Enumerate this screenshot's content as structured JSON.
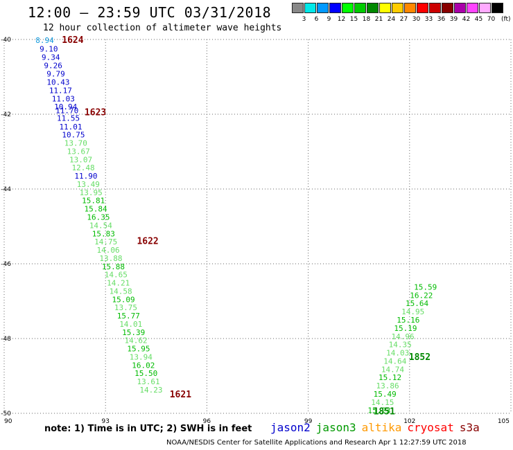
{
  "title": "12:00 — 23:59 UTC 03/31/2018",
  "subtitle": "12 hour collection of altimeter wave heights",
  "color_scale": {
    "unit": "(ft)",
    "bins": [
      {
        "label": "3",
        "color": "#888888"
      },
      {
        "label": "6",
        "color": "#00e8e8"
      },
      {
        "label": "9",
        "color": "#0099ff"
      },
      {
        "label": "12",
        "color": "#0000ff"
      },
      {
        "label": "15",
        "color": "#00ff00"
      },
      {
        "label": "18",
        "color": "#00cc00"
      },
      {
        "label": "21",
        "color": "#008800"
      },
      {
        "label": "24",
        "color": "#ffff00"
      },
      {
        "label": "27",
        "color": "#ffcc00"
      },
      {
        "label": "30",
        "color": "#ff8800"
      },
      {
        "label": "33",
        "color": "#ff0000"
      },
      {
        "label": "36",
        "color": "#cc0000"
      },
      {
        "label": "39",
        "color": "#880000"
      },
      {
        "label": "42",
        "color": "#aa00aa"
      },
      {
        "label": "45",
        "color": "#ff44ff"
      },
      {
        "label": "70",
        "color": "#ffaaff"
      },
      {
        "label": "",
        "color": "#000000"
      }
    ]
  },
  "note": "note:  1) Time is in UTC;  2) SWH is in feet",
  "legend": [
    {
      "name": "jason2",
      "color": "#0000cc"
    },
    {
      "name": "jason3",
      "color": "#009900"
    },
    {
      "name": "altika",
      "color": "#ff9900"
    },
    {
      "name": "cryosat",
      "color": "#ff0000"
    },
    {
      "name": "s3a",
      "color": "#880000"
    }
  ],
  "credit": "NOAA/NESDIS Center for Satellite Applications and Research     Apr  1 12:27:59 UTC 2018",
  "chart_data": {
    "type": "scatter",
    "xlim": [
      90,
      105
    ],
    "ylim": [
      -50,
      -40
    ],
    "x_ticks": [
      "90",
      "93",
      "96",
      "99",
      "102",
      "105"
    ],
    "y_ticks": [
      "-40",
      "-42",
      "-44",
      "-46",
      "-48",
      "-50"
    ],
    "grid": true,
    "colors": {
      "light": "#66dd66",
      "mid": "#00bb00",
      "dark": "#008800",
      "blue": "#0000cc",
      "cyan": "#1199dd",
      "time": "#880000"
    },
    "points": [
      {
        "x": 91.2,
        "y": -40.02,
        "v": "8.94",
        "c": "cyan"
      },
      {
        "x": 91.32,
        "y": -40.25,
        "v": "9.10",
        "c": "blue"
      },
      {
        "x": 91.38,
        "y": -40.47,
        "v": "9.34",
        "c": "blue"
      },
      {
        "x": 91.45,
        "y": -40.69,
        "v": "9.26",
        "c": "blue"
      },
      {
        "x": 91.53,
        "y": -40.92,
        "v": "9.79",
        "c": "blue"
      },
      {
        "x": 91.6,
        "y": -41.14,
        "v": "10.43",
        "c": "blue"
      },
      {
        "x": 91.67,
        "y": -41.36,
        "v": "11.17",
        "c": "blue"
      },
      {
        "x": 91.75,
        "y": -41.58,
        "v": "11.03",
        "c": "blue"
      },
      {
        "x": 91.82,
        "y": -41.8,
        "v": "10.94",
        "c": "blue"
      },
      {
        "x": 91.86,
        "y": -41.9,
        "v": "11.70",
        "c": "blue"
      },
      {
        "x": 91.9,
        "y": -42.1,
        "v": "11.55",
        "c": "blue"
      },
      {
        "x": 91.97,
        "y": -42.33,
        "v": "11.01",
        "c": "blue"
      },
      {
        "x": 92.05,
        "y": -42.55,
        "v": "10.75",
        "c": "blue"
      },
      {
        "x": 92.12,
        "y": -42.77,
        "v": "13.70",
        "c": "light"
      },
      {
        "x": 92.2,
        "y": -42.99,
        "v": "13.67",
        "c": "light"
      },
      {
        "x": 92.27,
        "y": -43.21,
        "v": "13.07",
        "c": "light"
      },
      {
        "x": 92.34,
        "y": -43.43,
        "v": "12.48",
        "c": "light"
      },
      {
        "x": 92.42,
        "y": -43.65,
        "v": "11.90",
        "c": "blue"
      },
      {
        "x": 92.49,
        "y": -43.87,
        "v": "13.49",
        "c": "light"
      },
      {
        "x": 92.57,
        "y": -44.09,
        "v": "13.95",
        "c": "light"
      },
      {
        "x": 92.64,
        "y": -44.31,
        "v": "15.81",
        "c": "mid"
      },
      {
        "x": 92.71,
        "y": -44.53,
        "v": "15.84",
        "c": "mid"
      },
      {
        "x": 92.79,
        "y": -44.75,
        "v": "16.35",
        "c": "mid"
      },
      {
        "x": 92.86,
        "y": -44.97,
        "v": "14.54",
        "c": "light"
      },
      {
        "x": 92.94,
        "y": -45.19,
        "v": "15.83",
        "c": "mid"
      },
      {
        "x": 93.01,
        "y": -45.41,
        "v": "14.75",
        "c": "light"
      },
      {
        "x": 93.08,
        "y": -45.63,
        "v": "14.06",
        "c": "light"
      },
      {
        "x": 93.16,
        "y": -45.85,
        "v": "13.88",
        "c": "light"
      },
      {
        "x": 93.23,
        "y": -46.07,
        "v": "15.88",
        "c": "mid"
      },
      {
        "x": 93.31,
        "y": -46.29,
        "v": "14.65",
        "c": "light"
      },
      {
        "x": 93.38,
        "y": -46.51,
        "v": "14.21",
        "c": "light"
      },
      {
        "x": 93.45,
        "y": -46.73,
        "v": "14.58",
        "c": "light"
      },
      {
        "x": 93.53,
        "y": -46.95,
        "v": "15.09",
        "c": "mid"
      },
      {
        "x": 93.6,
        "y": -47.17,
        "v": "13.75",
        "c": "light"
      },
      {
        "x": 93.68,
        "y": -47.39,
        "v": "15.77",
        "c": "mid"
      },
      {
        "x": 93.75,
        "y": -47.61,
        "v": "14.01",
        "c": "light"
      },
      {
        "x": 93.83,
        "y": -47.83,
        "v": "15.39",
        "c": "mid"
      },
      {
        "x": 93.9,
        "y": -48.05,
        "v": "14.62",
        "c": "light"
      },
      {
        "x": 93.98,
        "y": -48.27,
        "v": "15.95",
        "c": "mid"
      },
      {
        "x": 94.05,
        "y": -48.49,
        "v": "13.94",
        "c": "light"
      },
      {
        "x": 94.12,
        "y": -48.71,
        "v": "16.02",
        "c": "mid"
      },
      {
        "x": 94.2,
        "y": -48.93,
        "v": "15.50",
        "c": "mid"
      },
      {
        "x": 94.27,
        "y": -49.15,
        "v": "13.61",
        "c": "light"
      },
      {
        "x": 94.35,
        "y": -49.37,
        "v": "14.23",
        "c": "light"
      },
      {
        "x": 101.1,
        "y": -49.92,
        "v": "15.23",
        "c": "mid"
      },
      {
        "x": 101.2,
        "y": -49.7,
        "v": "14.15",
        "c": "light"
      },
      {
        "x": 101.27,
        "y": -49.48,
        "v": "15.49",
        "c": "mid"
      },
      {
        "x": 101.35,
        "y": -49.26,
        "v": "13.86",
        "c": "light"
      },
      {
        "x": 101.42,
        "y": -49.04,
        "v": "15.12",
        "c": "mid"
      },
      {
        "x": 101.5,
        "y": -48.82,
        "v": "14.74",
        "c": "light"
      },
      {
        "x": 101.57,
        "y": -48.6,
        "v": "14.64",
        "c": "light"
      },
      {
        "x": 101.65,
        "y": -48.38,
        "v": "14.03",
        "c": "light"
      },
      {
        "x": 101.72,
        "y": -48.16,
        "v": "14.35",
        "c": "light"
      },
      {
        "x": 101.8,
        "y": -47.94,
        "v": "14.96",
        "c": "light"
      },
      {
        "x": 101.88,
        "y": -47.72,
        "v": "15.19",
        "c": "mid"
      },
      {
        "x": 101.96,
        "y": -47.5,
        "v": "15.16",
        "c": "mid"
      },
      {
        "x": 102.1,
        "y": -47.28,
        "v": "14.95",
        "c": "light"
      },
      {
        "x": 102.22,
        "y": -47.06,
        "v": "15.64",
        "c": "mid"
      },
      {
        "x": 102.35,
        "y": -46.84,
        "v": "16.22",
        "c": "mid"
      },
      {
        "x": 102.47,
        "y": -46.62,
        "v": "15.59",
        "c": "mid"
      }
    ],
    "time_labels": [
      {
        "x": 92.03,
        "y": -40.02,
        "v": "1624"
      },
      {
        "x": 92.7,
        "y": -41.95,
        "v": "1623"
      },
      {
        "x": 94.25,
        "y": -45.4,
        "v": "1622"
      },
      {
        "x": 95.22,
        "y": -49.5,
        "v": "1621"
      },
      {
        "x": 102.3,
        "y": -48.5,
        "v": "1852"
      },
      {
        "x": 101.25,
        "y": -49.95,
        "v": "1851"
      }
    ]
  }
}
